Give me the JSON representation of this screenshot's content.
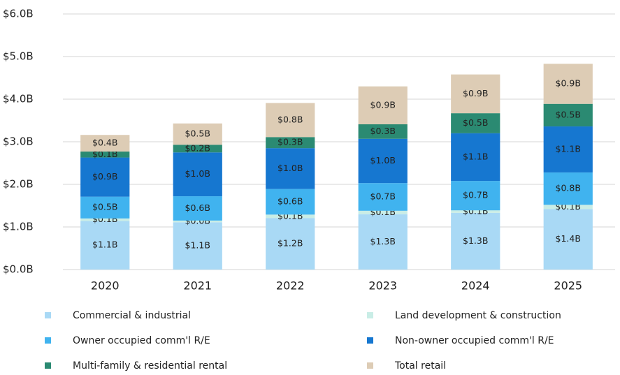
{
  "chart_data": {
    "type": "stacked_bar",
    "categories": [
      "2020",
      "2021",
      "2022",
      "2023",
      "2024",
      "2025"
    ],
    "series": [
      {
        "name": "Commercial & industrial",
        "color": "#a9d9f5",
        "values": [
          1.14,
          1.11,
          1.21,
          1.3,
          1.33,
          1.42
        ],
        "value_labels": [
          "$1.1B",
          "$1.1B",
          "$1.2B",
          "$1.3B",
          "$1.3B",
          "$1.4B"
        ]
      },
      {
        "name": "Land development & construction",
        "color": "#c9ede6",
        "values": [
          0.06,
          0.04,
          0.08,
          0.08,
          0.06,
          0.1
        ],
        "value_labels": [
          "$0.1B",
          "$0.0B",
          "$0.1B",
          "$0.1B",
          "$0.1B",
          "$0.1B"
        ]
      },
      {
        "name": "Owner occupied comm'l R/E",
        "color": "#40b3ef",
        "values": [
          0.51,
          0.57,
          0.6,
          0.65,
          0.69,
          0.76
        ],
        "value_labels": [
          "$0.5B",
          "$0.6B",
          "$0.6B",
          "$0.7B",
          "$0.7B",
          "$0.8B"
        ]
      },
      {
        "name": "Non-owner occupied comm'l R/E",
        "color": "#1677d0",
        "values": [
          0.92,
          1.03,
          0.96,
          1.04,
          1.12,
          1.08
        ],
        "value_labels": [
          "$0.9B",
          "$1.0B",
          "$1.0B",
          "$1.0B",
          "$1.1B",
          "$1.1B"
        ]
      },
      {
        "name": "Multi-family & residential rental",
        "color": "#2b8a72",
        "values": [
          0.14,
          0.18,
          0.26,
          0.34,
          0.47,
          0.53
        ],
        "value_labels": [
          "$0.1B",
          "$0.2B",
          "$0.3B",
          "$0.3B",
          "$0.5B",
          "$0.5B"
        ]
      },
      {
        "name": "Total retail",
        "color": "#ddccb5",
        "values": [
          0.39,
          0.5,
          0.8,
          0.89,
          0.91,
          0.94
        ],
        "value_labels": [
          "$0.4B",
          "$0.5B",
          "$0.8B",
          "$0.9B",
          "$0.9B",
          "$0.9B"
        ]
      }
    ],
    "ylim": [
      0,
      6
    ],
    "yticks": [
      {
        "value": 0,
        "label": "$0.0B"
      },
      {
        "value": 1,
        "label": "$1.0B"
      },
      {
        "value": 2,
        "label": "$2.0B"
      },
      {
        "value": 3,
        "label": "$3.0B"
      },
      {
        "value": 4,
        "label": "$4.0B"
      },
      {
        "value": 5,
        "label": "$5.0B"
      },
      {
        "value": 6,
        "label": "$6.0B"
      }
    ],
    "grid": true
  }
}
